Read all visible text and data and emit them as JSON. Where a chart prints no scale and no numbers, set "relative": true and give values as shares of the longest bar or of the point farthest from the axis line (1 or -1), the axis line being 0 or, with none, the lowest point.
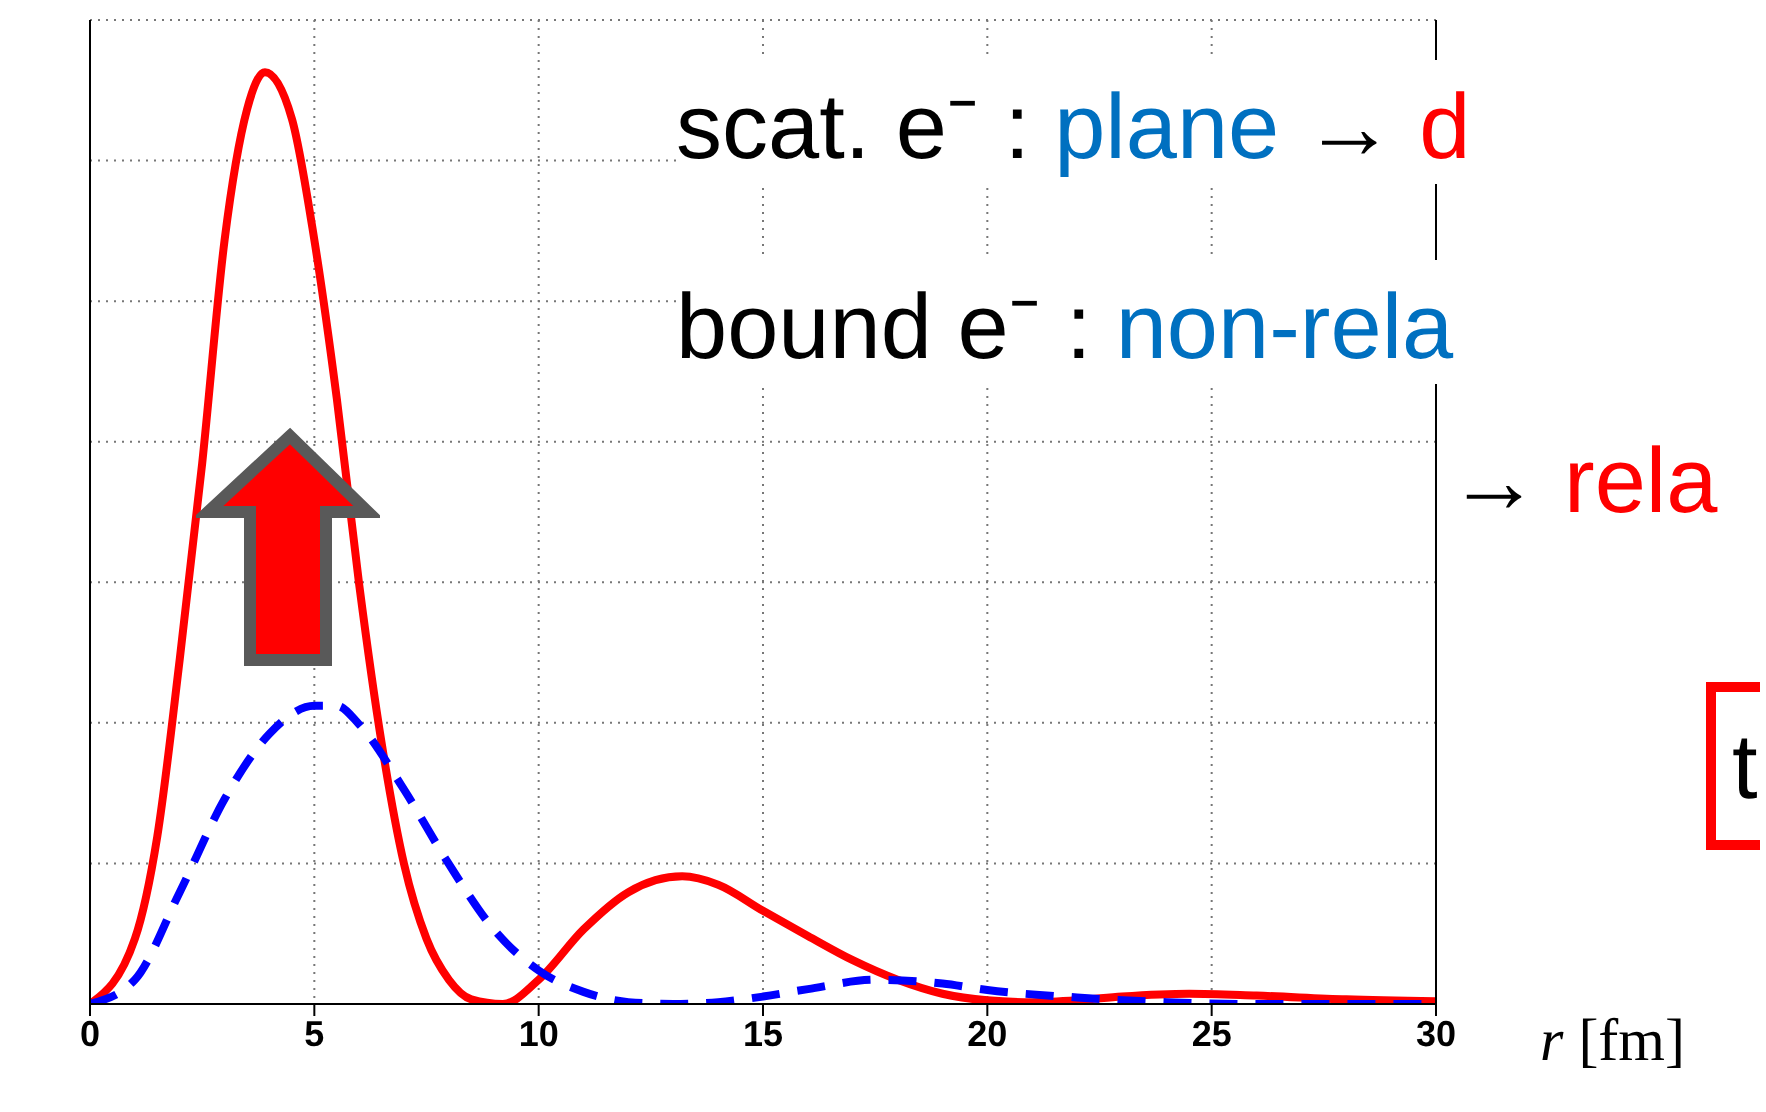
{
  "chart_data": {
    "type": "line",
    "relative": true,
    "xlabel": "r [fm]",
    "xlim": [
      0,
      30
    ],
    "xticks": [
      0,
      5,
      10,
      15,
      20,
      25,
      30
    ],
    "grid": true,
    "marker": "none",
    "annotations": [
      "scat. e⁻ :",
      "plane",
      "→",
      "d",
      "bound e⁻ :",
      "non-rela",
      "→",
      "rela",
      "t"
    ],
    "series": [
      {
        "color": "#ff0000",
        "line_style": "solid",
        "x": [
          0,
          1,
          1.5,
          2,
          2.5,
          3,
          3.5,
          3.9,
          4.5,
          5,
          5.5,
          6,
          6.5,
          7,
          7.5,
          8,
          8.5,
          9.2,
          10,
          11,
          12,
          13.2,
          14,
          15,
          16,
          17,
          18,
          19,
          20,
          21,
          22,
          23,
          24.5,
          26,
          28,
          30
        ],
        "values": [
          0,
          0.07,
          0.18,
          0.37,
          0.58,
          0.82,
          0.96,
          1,
          0.95,
          0.82,
          0.65,
          0.45,
          0.28,
          0.15,
          0.07,
          0.026,
          0.005,
          0,
          0.026,
          0.08,
          0.12,
          0.137,
          0.128,
          0.1,
          0.073,
          0.047,
          0.026,
          0.011,
          0.004,
          0.002,
          0.004,
          0.008,
          0.011,
          0.009,
          0.005,
          0.003
        ]
      },
      {
        "color": "#0000ff",
        "line_style": "dashed",
        "x": [
          0,
          1,
          2,
          3,
          4,
          5,
          5.5,
          6,
          7,
          8,
          9,
          10,
          11,
          12,
          13,
          14,
          15,
          16,
          17.5,
          19,
          20,
          22,
          24,
          26,
          30
        ],
        "values": [
          0,
          0.026,
          0.12,
          0.22,
          0.29,
          0.32,
          0.32,
          0.3,
          0.23,
          0.15,
          0.08,
          0.036,
          0.013,
          0.002,
          0,
          0.002,
          0.008,
          0.016,
          0.026,
          0.022,
          0.015,
          0.007,
          0.002,
          0,
          0
        ]
      }
    ]
  }
}
